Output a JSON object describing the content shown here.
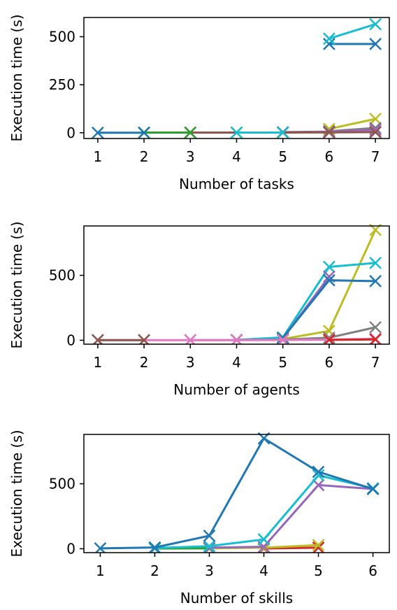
{
  "chart_data": [
    {
      "type": "line",
      "xlabel": "Number of tasks",
      "ylabel": "Execution time (s)",
      "xlim": [
        0.7,
        7.3
      ],
      "ylim": [
        -30,
        600
      ],
      "xticks": [
        1,
        2,
        3,
        4,
        5,
        6,
        7
      ],
      "yticks": [
        0,
        250,
        500
      ],
      "grid": false,
      "marker": "x",
      "series": [
        {
          "color": "#1f77b4",
          "x": [
            6,
            7
          ],
          "y": [
            462,
            462
          ]
        },
        {
          "color": "#17becf",
          "x": [
            6,
            7
          ],
          "y": [
            490,
            565
          ]
        },
        {
          "color": "#bcbd22",
          "x": [
            6,
            7
          ],
          "y": [
            20,
            72
          ]
        },
        {
          "color": "#7f7f7f",
          "x": [
            6,
            7
          ],
          "y": [
            8,
            25
          ]
        },
        {
          "color": "#9467bd",
          "x": [
            5,
            6,
            7
          ],
          "y": [
            3,
            6,
            15
          ]
        },
        {
          "color": "#e377c2",
          "x": [
            6,
            7
          ],
          "y": [
            2,
            5
          ]
        },
        {
          "color": "#8c564b",
          "x": [
            3,
            4,
            5,
            6,
            7
          ],
          "y": [
            1,
            1,
            1,
            2,
            3
          ]
        },
        {
          "color": "#17becf",
          "x": [
            4,
            5
          ],
          "y": [
            1,
            1
          ]
        },
        {
          "color": "#2ca02c",
          "x": [
            2,
            3
          ],
          "y": [
            1,
            1
          ]
        },
        {
          "color": "#1f77b4",
          "x": [
            1,
            2
          ],
          "y": [
            0,
            0
          ]
        }
      ]
    },
    {
      "type": "line",
      "xlabel": "Number of agents",
      "ylabel": "Execution time (s)",
      "xlim": [
        0.7,
        7.3
      ],
      "ylim": [
        -30,
        880
      ],
      "xticks": [
        1,
        2,
        3,
        4,
        5,
        6,
        7
      ],
      "yticks": [
        0,
        500
      ],
      "grid": false,
      "marker": "x",
      "series": [
        {
          "color": "#bcbd22",
          "x": [
            4,
            5,
            6,
            7
          ],
          "y": [
            3,
            10,
            72,
            850
          ]
        },
        {
          "color": "#17becf",
          "x": [
            4,
            5,
            6,
            7
          ],
          "y": [
            3,
            22,
            565,
            595
          ]
        },
        {
          "color": "#9467bd",
          "x": [
            5,
            6
          ],
          "y": [
            15,
            490
          ]
        },
        {
          "color": "#1f77b4",
          "x": [
            5,
            6,
            7
          ],
          "y": [
            18,
            462,
            455
          ]
        },
        {
          "color": "#7f7f7f",
          "x": [
            3,
            4,
            5,
            6,
            7
          ],
          "y": [
            1,
            2,
            5,
            20,
            100
          ]
        },
        {
          "color": "#e377c2",
          "x": [
            1,
            2,
            3,
            4,
            5,
            6,
            7
          ],
          "y": [
            1,
            1,
            1,
            1,
            2,
            5,
            12
          ]
        },
        {
          "color": "#8c564b",
          "x": [
            1,
            2
          ],
          "y": [
            1,
            1
          ]
        },
        {
          "color": "#d62728",
          "x": [
            6,
            7
          ],
          "y": [
            3,
            6
          ]
        }
      ]
    },
    {
      "type": "line",
      "xlabel": "Number of skills",
      "ylabel": "Execution time (s)",
      "xlim": [
        0.7,
        6.3
      ],
      "ylim": [
        -30,
        880
      ],
      "xticks": [
        1,
        2,
        3,
        4,
        5,
        6
      ],
      "yticks": [
        0,
        500
      ],
      "grid": false,
      "marker": "x",
      "series": [
        {
          "color": "#d62728",
          "x": [
            4,
            5
          ],
          "y": [
            2,
            8
          ]
        },
        {
          "color": "#bcbd22",
          "x": [
            3,
            4,
            5
          ],
          "y": [
            3,
            8,
            28
          ]
        },
        {
          "color": "#2ca02c",
          "x": [
            2,
            3
          ],
          "y": [
            2,
            3
          ]
        },
        {
          "color": "#9467bd",
          "x": [
            3,
            4,
            5,
            6
          ],
          "y": [
            8,
            15,
            490,
            460
          ]
        },
        {
          "color": "#17becf",
          "x": [
            2,
            3,
            4,
            5,
            6
          ],
          "y": [
            5,
            20,
            72,
            565,
            465
          ]
        },
        {
          "color": "#1f77b4",
          "x": [
            1,
            2,
            3,
            4,
            5,
            6
          ],
          "y": [
            3,
            10,
            100,
            850,
            592,
            460
          ]
        }
      ]
    }
  ]
}
